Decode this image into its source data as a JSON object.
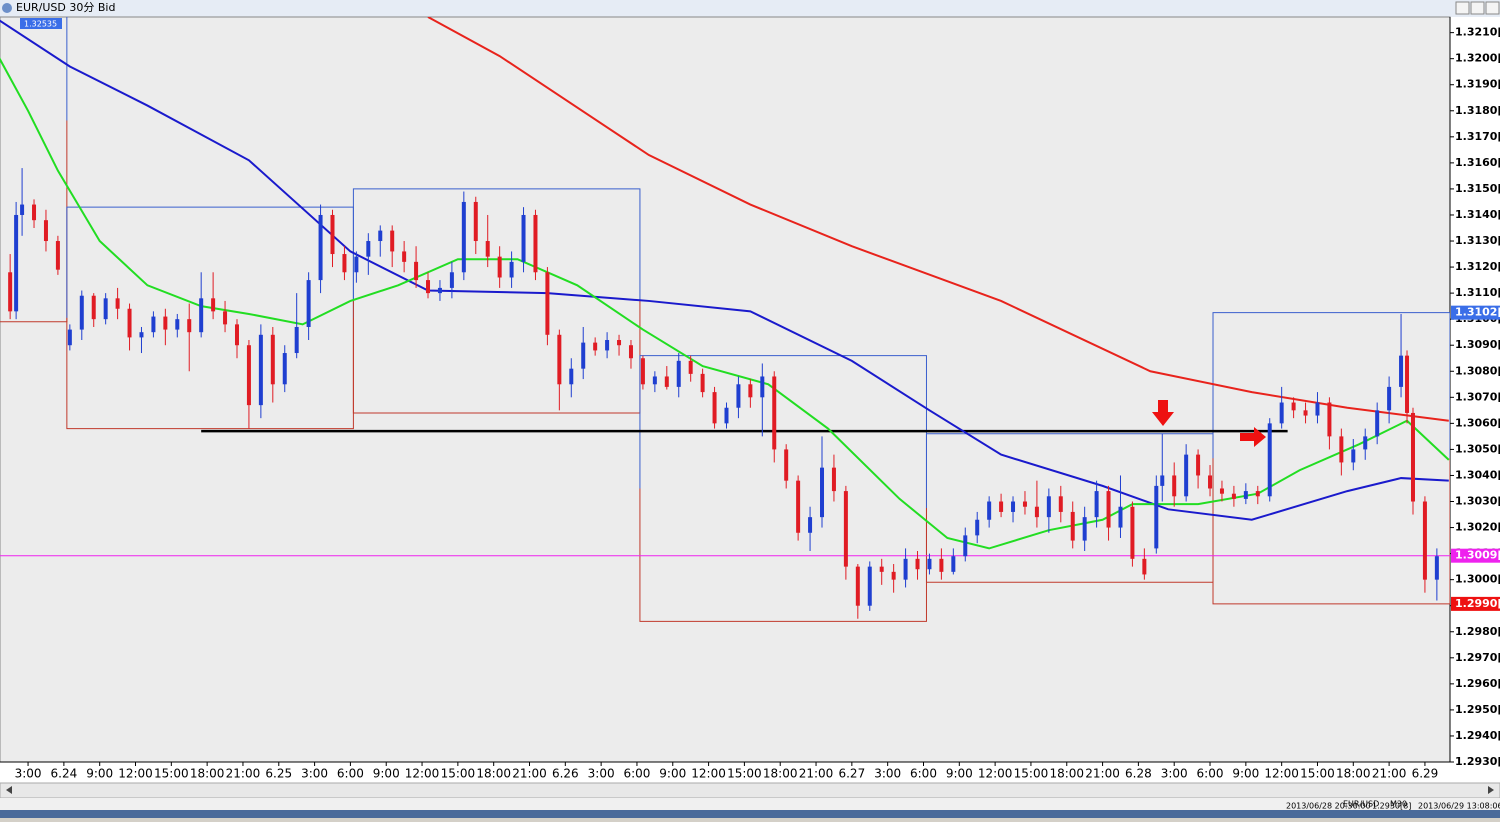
{
  "window": {
    "title": "EUR/USD 30分 Bid",
    "symbol": "EUR/USD",
    "period": "M30",
    "status_time": "2013/06/28 20:30:00",
    "status_price": "1.2930[8]",
    "status_clock": "2013/06/29 13:08:06"
  },
  "chart_data": {
    "type": "candlestick",
    "xlim": [
      -4.7,
      238.2
    ],
    "ylim": [
      1.293,
      1.3216
    ],
    "xticks": [
      {
        "value": 0,
        "label": "3:00"
      },
      {
        "value": 6,
        "label": "6.24"
      },
      {
        "value": 12,
        "label": "9:00"
      },
      {
        "value": 18,
        "label": "12:00"
      },
      {
        "value": 24,
        "label": "15:00"
      },
      {
        "value": 30,
        "label": "18:00"
      },
      {
        "value": 36,
        "label": "21:00"
      },
      {
        "value": 42,
        "label": "6.25"
      },
      {
        "value": 48,
        "label": "3:00"
      },
      {
        "value": 54,
        "label": "6:00"
      },
      {
        "value": 60,
        "label": "9:00"
      },
      {
        "value": 66,
        "label": "12:00"
      },
      {
        "value": 72,
        "label": "15:00"
      },
      {
        "value": 78,
        "label": "18:00"
      },
      {
        "value": 84,
        "label": "21:00"
      },
      {
        "value": 90,
        "label": "6.26"
      },
      {
        "value": 96,
        "label": "3:00"
      },
      {
        "value": 102,
        "label": "6:00"
      },
      {
        "value": 108,
        "label": "9:00"
      },
      {
        "value": 114,
        "label": "12:00"
      },
      {
        "value": 120,
        "label": "15:00"
      },
      {
        "value": 126,
        "label": "18:00"
      },
      {
        "value": 132,
        "label": "21:00"
      },
      {
        "value": 138,
        "label": "6.27"
      },
      {
        "value": 144,
        "label": "3:00"
      },
      {
        "value": 150,
        "label": "6:00"
      },
      {
        "value": 156,
        "label": "9:00"
      },
      {
        "value": 162,
        "label": "12:00"
      },
      {
        "value": 168,
        "label": "15:00"
      },
      {
        "value": 174,
        "label": "18:00"
      },
      {
        "value": 180,
        "label": "21:00"
      },
      {
        "value": 186,
        "label": "6.28"
      },
      {
        "value": 192,
        "label": "3:00"
      },
      {
        "value": 198,
        "label": "6:00"
      },
      {
        "value": 204,
        "label": "9:00"
      },
      {
        "value": 210,
        "label": "12:00"
      },
      {
        "value": 216,
        "label": "15:00"
      },
      {
        "value": 222,
        "label": "18:00"
      },
      {
        "value": 228,
        "label": "21:00"
      },
      {
        "value": 234,
        "label": "6.29"
      }
    ],
    "yticks": [
      {
        "value": 1.293,
        "label": "1.2930[0"
      },
      {
        "value": 1.294,
        "label": "1.2940[0"
      },
      {
        "value": 1.295,
        "label": "1.2950[0"
      },
      {
        "value": 1.296,
        "label": "1.2960[0"
      },
      {
        "value": 1.297,
        "label": "1.2970[0"
      },
      {
        "value": 1.298,
        "label": "1.2980[0"
      },
      {
        "value": 1.299,
        "label": "1.2990[0"
      },
      {
        "value": 1.3,
        "label": "1.3000[0"
      },
      {
        "value": 1.301,
        "label": "1.3010[0"
      },
      {
        "value": 1.302,
        "label": "1.3020[0"
      },
      {
        "value": 1.303,
        "label": "1.3030[0"
      },
      {
        "value": 1.304,
        "label": "1.3040[0"
      },
      {
        "value": 1.305,
        "label": "1.3050[0"
      },
      {
        "value": 1.306,
        "label": "1.3060[0"
      },
      {
        "value": 1.307,
        "label": "1.3070[0"
      },
      {
        "value": 1.308,
        "label": "1.3080[0"
      },
      {
        "value": 1.309,
        "label": "1.3090[0"
      },
      {
        "value": 1.31,
        "label": "1.3100[0"
      },
      {
        "value": 1.311,
        "label": "1.3110[0"
      },
      {
        "value": 1.312,
        "label": "1.3120[0"
      },
      {
        "value": 1.313,
        "label": "1.3130[0"
      },
      {
        "value": 1.314,
        "label": "1.3140[0"
      },
      {
        "value": 1.315,
        "label": "1.3150[0"
      },
      {
        "value": 1.316,
        "label": "1.3160[0"
      },
      {
        "value": 1.317,
        "label": "1.3170[0"
      },
      {
        "value": 1.318,
        "label": "1.3180[0"
      },
      {
        "value": 1.319,
        "label": "1.3190[0"
      },
      {
        "value": 1.32,
        "label": "1.3200[0"
      },
      {
        "value": 1.321,
        "label": "1.3210[0"
      }
    ],
    "up_color": "#1f3fd0",
    "down_color": "#e01c24",
    "candles": {
      "x": [
        -3,
        -2,
        -1,
        1,
        3,
        5,
        7,
        9,
        11,
        13,
        15,
        17,
        19,
        21,
        23,
        25,
        27,
        29,
        31,
        33,
        35,
        37,
        39,
        41,
        43,
        45,
        47,
        49,
        51,
        53,
        55,
        57,
        59,
        61,
        63,
        65,
        67,
        69,
        71,
        73,
        75,
        77,
        79,
        81,
        83,
        85,
        87,
        89,
        91,
        93,
        95,
        97,
        99,
        101,
        103,
        105,
        107,
        109,
        111,
        113,
        115,
        117,
        119,
        121,
        123,
        125,
        127,
        129,
        131,
        133,
        135,
        137,
        139,
        141,
        143,
        145,
        147,
        149,
        151,
        153,
        155,
        157,
        159,
        161,
        163,
        165,
        167,
        169,
        171,
        173,
        175,
        177,
        179,
        181,
        183,
        185,
        187,
        189,
        190,
        192,
        194,
        196,
        198,
        200,
        202,
        204,
        206,
        208,
        210,
        212,
        214,
        216,
        218,
        220,
        222,
        224,
        226,
        228,
        230,
        231,
        232,
        234,
        236
      ],
      "open": [
        1.3118,
        1.3103,
        1.314,
        1.3144,
        1.3138,
        1.313,
        1.309,
        1.3096,
        1.3109,
        1.31,
        1.3108,
        1.3104,
        1.3093,
        1.3095,
        1.3101,
        1.3096,
        1.31,
        1.3095,
        1.3108,
        1.3103,
        1.3098,
        1.309,
        1.3067,
        1.3094,
        1.3075,
        1.3087,
        1.3097,
        1.3115,
        1.314,
        1.3125,
        1.3118,
        1.3124,
        1.313,
        1.3134,
        1.3126,
        1.3122,
        1.3115,
        1.311,
        1.3112,
        1.3118,
        1.3145,
        1.313,
        1.3124,
        1.3116,
        1.3122,
        1.314,
        1.3118,
        1.3094,
        1.3075,
        1.3081,
        1.3091,
        1.3088,
        1.3092,
        1.309,
        1.3085,
        1.3075,
        1.3078,
        1.3074,
        1.3084,
        1.3079,
        1.3072,
        1.306,
        1.3066,
        1.3075,
        1.307,
        1.3078,
        1.305,
        1.3038,
        1.3018,
        1.3024,
        1.3043,
        1.3034,
        1.3005,
        1.299,
        1.3005,
        1.3003,
        1.3,
        1.3008,
        1.3004,
        1.3008,
        1.3003,
        1.3009,
        1.3017,
        1.3023,
        1.303,
        1.3026,
        1.303,
        1.3028,
        1.3024,
        1.3032,
        1.3026,
        1.3015,
        1.3024,
        1.3034,
        1.302,
        1.3028,
        1.3008,
        1.3012,
        1.3036,
        1.304,
        1.3032,
        1.3048,
        1.304,
        1.3035,
        1.3033,
        1.3031,
        1.3034,
        1.3032,
        1.306,
        1.3068,
        1.3065,
        1.3063,
        1.3068,
        1.3055,
        1.3045,
        1.305,
        1.3055,
        1.3065,
        1.3074,
        1.3086,
        1.3064,
        1.303,
        1.3
      ],
      "high": [
        1.3125,
        1.3145,
        1.3158,
        1.3146,
        1.3142,
        1.3132,
        1.3098,
        1.3111,
        1.311,
        1.311,
        1.3112,
        1.3106,
        1.3097,
        1.3103,
        1.3104,
        1.3102,
        1.3106,
        1.3118,
        1.3118,
        1.3107,
        1.31,
        1.3092,
        1.3098,
        1.3097,
        1.309,
        1.311,
        1.3118,
        1.3144,
        1.3142,
        1.3128,
        1.3126,
        1.3133,
        1.3136,
        1.3136,
        1.313,
        1.3128,
        1.3118,
        1.3115,
        1.3122,
        1.3149,
        1.3147,
        1.314,
        1.3128,
        1.3126,
        1.3143,
        1.3142,
        1.312,
        1.3096,
        1.3085,
        1.3097,
        1.3093,
        1.3095,
        1.3094,
        1.3092,
        1.3086,
        1.308,
        1.3082,
        1.3087,
        1.3086,
        1.3081,
        1.3074,
        1.3068,
        1.3078,
        1.3077,
        1.3083,
        1.308,
        1.3052,
        1.304,
        1.3028,
        1.3055,
        1.3048,
        1.3036,
        1.3006,
        1.3007,
        1.3008,
        1.3006,
        1.3012,
        1.3011,
        1.301,
        1.3012,
        1.3012,
        1.302,
        1.3026,
        1.3032,
        1.3033,
        1.3032,
        1.3034,
        1.3038,
        1.3035,
        1.3036,
        1.303,
        1.3028,
        1.3038,
        1.3036,
        1.304,
        1.303,
        1.3012,
        1.304,
        1.3056,
        1.3045,
        1.3052,
        1.305,
        1.3044,
        1.3038,
        1.3036,
        1.3037,
        1.3036,
        1.3062,
        1.3074,
        1.307,
        1.3068,
        1.3072,
        1.307,
        1.3058,
        1.3054,
        1.3058,
        1.3068,
        1.3078,
        1.3102,
        1.3088,
        1.3066,
        1.3032,
        1.3012
      ],
      "low": [
        1.31,
        1.31,
        1.3132,
        1.3135,
        1.3126,
        1.3117,
        1.3088,
        1.3092,
        1.3097,
        1.3098,
        1.31,
        1.3088,
        1.3087,
        1.3093,
        1.309,
        1.3093,
        1.308,
        1.3093,
        1.31,
        1.3095,
        1.3085,
        1.3058,
        1.3062,
        1.3068,
        1.3072,
        1.3085,
        1.3092,
        1.311,
        1.312,
        1.3115,
        1.3114,
        1.3117,
        1.3124,
        1.312,
        1.3118,
        1.3112,
        1.3108,
        1.3107,
        1.3108,
        1.3115,
        1.3125,
        1.312,
        1.3112,
        1.3112,
        1.3118,
        1.3115,
        1.309,
        1.3065,
        1.307,
        1.3077,
        1.3086,
        1.3085,
        1.3086,
        1.3081,
        1.3073,
        1.3072,
        1.3073,
        1.307,
        1.3076,
        1.307,
        1.3058,
        1.3058,
        1.3062,
        1.3066,
        1.3055,
        1.3045,
        1.3035,
        1.3015,
        1.3011,
        1.302,
        1.303,
        1.3,
        1.2985,
        1.2988,
        1.2998,
        1.2995,
        1.2997,
        1.3,
        1.3002,
        1.3,
        1.3002,
        1.3007,
        1.3014,
        1.302,
        1.3024,
        1.3022,
        1.3025,
        1.302,
        1.3018,
        1.3022,
        1.3012,
        1.3011,
        1.302,
        1.3015,
        1.3016,
        1.3005,
        1.3,
        1.301,
        1.303,
        1.3028,
        1.303,
        1.3035,
        1.3032,
        1.303,
        1.3028,
        1.3029,
        1.3029,
        1.303,
        1.3058,
        1.3062,
        1.306,
        1.306,
        1.305,
        1.304,
        1.3042,
        1.3046,
        1.3052,
        1.306,
        1.307,
        1.306,
        1.3025,
        1.2995,
        1.2992
      ],
      "close": [
        1.3103,
        1.314,
        1.3144,
        1.3138,
        1.313,
        1.3119,
        1.3096,
        1.3109,
        1.31,
        1.3108,
        1.3104,
        1.3093,
        1.3095,
        1.3101,
        1.3096,
        1.31,
        1.3095,
        1.3108,
        1.3103,
        1.3098,
        1.309,
        1.3067,
        1.3094,
        1.3075,
        1.3087,
        1.3097,
        1.3115,
        1.314,
        1.3125,
        1.3118,
        1.3124,
        1.313,
        1.3134,
        1.3126,
        1.3122,
        1.3115,
        1.311,
        1.3112,
        1.3118,
        1.3145,
        1.313,
        1.3124,
        1.3116,
        1.3122,
        1.314,
        1.3118,
        1.3094,
        1.3075,
        1.3081,
        1.3091,
        1.3088,
        1.3092,
        1.309,
        1.3085,
        1.3075,
        1.3078,
        1.3074,
        1.3084,
        1.3079,
        1.3072,
        1.306,
        1.3066,
        1.3075,
        1.307,
        1.3078,
        1.305,
        1.3038,
        1.3018,
        1.3024,
        1.3043,
        1.3034,
        1.3005,
        1.299,
        1.3005,
        1.3003,
        1.3,
        1.3008,
        1.3004,
        1.3008,
        1.3003,
        1.3009,
        1.3017,
        1.3023,
        1.303,
        1.3026,
        1.303,
        1.3028,
        1.3024,
        1.3032,
        1.3026,
        1.3015,
        1.3024,
        1.3034,
        1.302,
        1.3028,
        1.3008,
        1.3002,
        1.3036,
        1.304,
        1.3032,
        1.3048,
        1.304,
        1.3035,
        1.3033,
        1.3031,
        1.3034,
        1.3032,
        1.306,
        1.3068,
        1.3065,
        1.3063,
        1.3068,
        1.3055,
        1.3045,
        1.305,
        1.3055,
        1.3065,
        1.3074,
        1.3086,
        1.3064,
        1.303,
        1.3,
        1.3009
      ]
    },
    "lines": [
      {
        "color": "#e8231c",
        "x": [
          67,
          79,
          104,
          121,
          138,
          163,
          188,
          205,
          221,
          238
        ],
        "values": [
          1.3216,
          1.3201,
          1.3163,
          1.3144,
          1.3128,
          1.3107,
          1.308,
          1.3072,
          1.3066,
          1.3061
        ]
      },
      {
        "color": "#1a1acc",
        "x": [
          -5,
          7,
          20,
          37,
          54,
          67,
          87,
          104,
          121,
          138,
          151,
          163,
          180,
          191,
          205,
          221,
          230,
          238
        ],
        "values": [
          1.3215,
          1.3197,
          1.3182,
          1.3161,
          1.3126,
          1.3111,
          1.311,
          1.3107,
          1.3103,
          1.3084,
          1.3065,
          1.3048,
          1.3036,
          1.3027,
          1.3023,
          1.3034,
          1.3039,
          1.3038
        ]
      },
      {
        "color": "#22dd22",
        "x": [
          -5,
          0,
          5,
          12,
          20,
          29,
          37,
          46,
          54,
          62,
          72,
          82,
          92,
          103,
          113,
          124,
          134,
          146,
          154,
          161,
          171,
          180,
          185,
          196,
          206,
          213,
          223,
          231,
          238
        ],
        "values": [
          1.3201,
          1.318,
          1.3157,
          1.313,
          1.3113,
          1.3105,
          1.3102,
          1.3098,
          1.3107,
          1.3113,
          1.3123,
          1.3123,
          1.3113,
          1.3096,
          1.3082,
          1.3075,
          1.3058,
          1.3031,
          1.3016,
          1.3012,
          1.3019,
          1.3023,
          1.3029,
          1.3029,
          1.3033,
          1.3042,
          1.3052,
          1.3061,
          1.3046
        ]
      }
    ],
    "day_ranges": {
      "x_start": [
        -5,
        6.5,
        54.5,
        102.5,
        150.5,
        198.5
      ],
      "x_end": [
        6.5,
        54.5,
        102.5,
        150.5,
        198.5,
        238.2
      ],
      "high": [
        1.32535,
        1.3143,
        1.315,
        1.3086,
        1.3056,
        1.31025
      ],
      "low": [
        1.3099,
        1.3058,
        1.3064,
        1.2984,
        1.2999,
        1.29907
      ],
      "high_color": "#3a5fcd",
      "low_color": "#c0392b"
    },
    "hline": {
      "value": 1.3057,
      "x": [
        29,
        211
      ],
      "color": "#000000"
    },
    "corner_tag": {
      "value": 1.32535,
      "label": "1.32535"
    },
    "price_tags": [
      {
        "value": 1.31025,
        "label": "1.3102[5",
        "color": "#3a6ee8"
      },
      {
        "value": 1.30092,
        "label": "1.3009[2",
        "color": "#ee22ee",
        "line": true
      },
      {
        "value": 1.29907,
        "label": "1.2990[7",
        "color": "#ee1111"
      }
    ]
  }
}
